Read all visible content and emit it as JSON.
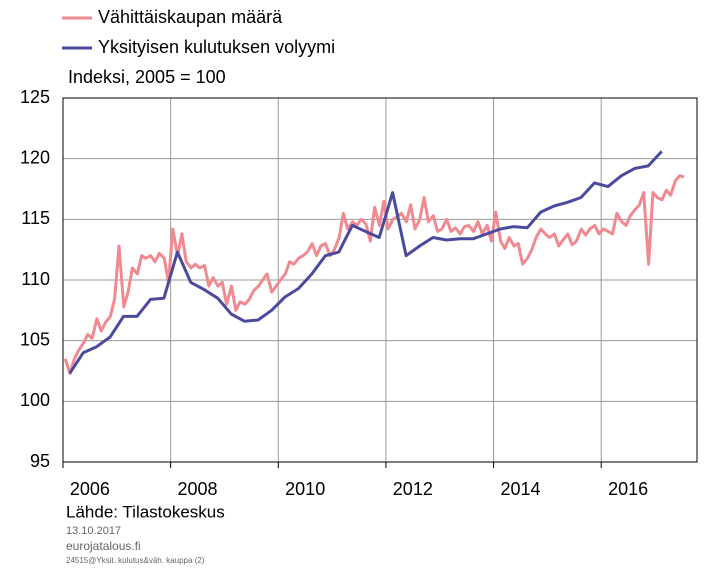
{
  "chart_data": {
    "type": "line",
    "subtitle": "Indeksi, 2005 = 100",
    "source": "Lähde: Tilastokeskus",
    "date": "13.10.2017",
    "site": "eurojatalous.fi",
    "file": "24515@Yksit. kulutus&väh. kauppa (2)",
    "xlim": [
      2006,
      2017.78
    ],
    "xticks": [
      2006,
      2008,
      2010,
      2012,
      2014,
      2016
    ],
    "ylim": [
      95,
      125
    ],
    "yticks": [
      95,
      100,
      105,
      110,
      115,
      120,
      125
    ],
    "grid": true,
    "series": [
      {
        "name": "Vähittäiskaupan määrä",
        "color": "#f08a90",
        "x": [
          2006.04,
          2006.13,
          2006.21,
          2006.29,
          2006.38,
          2006.46,
          2006.54,
          2006.63,
          2006.71,
          2006.79,
          2006.88,
          2006.96,
          2007.04,
          2007.13,
          2007.21,
          2007.29,
          2007.38,
          2007.46,
          2007.54,
          2007.63,
          2007.71,
          2007.79,
          2007.88,
          2007.96,
          2008.04,
          2008.13,
          2008.21,
          2008.29,
          2008.38,
          2008.46,
          2008.54,
          2008.63,
          2008.71,
          2008.79,
          2008.88,
          2008.96,
          2009.04,
          2009.13,
          2009.21,
          2009.29,
          2009.38,
          2009.46,
          2009.54,
          2009.63,
          2009.71,
          2009.79,
          2009.88,
          2009.96,
          2010.04,
          2010.13,
          2010.21,
          2010.29,
          2010.38,
          2010.46,
          2010.54,
          2010.63,
          2010.71,
          2010.79,
          2010.88,
          2010.96,
          2011.04,
          2011.13,
          2011.21,
          2011.29,
          2011.38,
          2011.46,
          2011.54,
          2011.63,
          2011.71,
          2011.79,
          2011.88,
          2011.96,
          2012.04,
          2012.13,
          2012.21,
          2012.29,
          2012.38,
          2012.46,
          2012.54,
          2012.63,
          2012.71,
          2012.79,
          2012.88,
          2012.96,
          2013.04,
          2013.13,
          2013.21,
          2013.29,
          2013.38,
          2013.46,
          2013.54,
          2013.63,
          2013.71,
          2013.79,
          2013.88,
          2013.96,
          2014.04,
          2014.13,
          2014.21,
          2014.29,
          2014.38,
          2014.46,
          2014.54,
          2014.63,
          2014.71,
          2014.79,
          2014.88,
          2014.96,
          2015.04,
          2015.13,
          2015.21,
          2015.29,
          2015.38,
          2015.46,
          2015.54,
          2015.63,
          2015.71,
          2015.79,
          2015.88,
          2015.96,
          2016.04,
          2016.13,
          2016.21,
          2016.29,
          2016.38,
          2016.46,
          2016.54,
          2016.63,
          2016.71,
          2016.79,
          2016.88,
          2016.96,
          2017.04,
          2017.13,
          2017.21,
          2017.29,
          2017.38,
          2017.46,
          2017.54
        ],
        "values": [
          103.5,
          102.3,
          103.5,
          104.2,
          104.8,
          105.5,
          105.2,
          106.8,
          105.8,
          106.5,
          107,
          108.5,
          112.8,
          107.8,
          109,
          111,
          110.5,
          112,
          111.8,
          112,
          111.5,
          112.2,
          111.8,
          109.8,
          114.2,
          112,
          113.8,
          111.5,
          111,
          111.3,
          111,
          111.2,
          109.5,
          110.2,
          109.5,
          109.8,
          108,
          109.5,
          107.5,
          108.2,
          108,
          108.4,
          109.1,
          109.5,
          110,
          110.5,
          109,
          109.5,
          110,
          110.5,
          111.5,
          111.3,
          111.8,
          112,
          112.3,
          113,
          112,
          112.8,
          113,
          112,
          112.5,
          113.5,
          115.5,
          114.2,
          114.8,
          114.5,
          115,
          114.6,
          113.2,
          116,
          114.5,
          116.5,
          114.2,
          115,
          115.2,
          115.5,
          114.8,
          116.2,
          114.2,
          115,
          116.8,
          114.8,
          115.3,
          114,
          114.2,
          115,
          114,
          114.3,
          113.8,
          114.4,
          114.5,
          114,
          114.8,
          113.8,
          114.5,
          113.2,
          115.6,
          113.2,
          112.6,
          113.5,
          112.8,
          113,
          111.3,
          111.8,
          112.5,
          113.5,
          114.2,
          113.8,
          113.5,
          113.8,
          112.8,
          113.3,
          113.8,
          112.9,
          113.2,
          114.2,
          113.7,
          114.2,
          114.5,
          113.8,
          114.2,
          114,
          113.8,
          115.5,
          114.8,
          114.5,
          115.3,
          115.8,
          116.2,
          117.2,
          111.3,
          117.2,
          116.8,
          116.6,
          117.4,
          117,
          118.2,
          118.6,
          118.5
        ]
      },
      {
        "name": "Yksityisen kulutuksen volyymi",
        "color": "#4b4b9e",
        "x": [
          2006.125,
          2006.375,
          2006.625,
          2006.875,
          2007.125,
          2007.375,
          2007.625,
          2007.875,
          2008.125,
          2008.375,
          2008.625,
          2008.875,
          2009.125,
          2009.375,
          2009.625,
          2009.875,
          2010.125,
          2010.375,
          2010.625,
          2010.875,
          2011.125,
          2011.375,
          2011.625,
          2011.875,
          2012.125,
          2012.375,
          2012.625,
          2012.875,
          2013.125,
          2013.375,
          2013.625,
          2013.875,
          2014.125,
          2014.375,
          2014.625,
          2014.875,
          2015.125,
          2015.375,
          2015.625,
          2015.875,
          2016.125,
          2016.375,
          2016.625,
          2016.875,
          2017.125
        ],
        "values": [
          102.3,
          104,
          104.5,
          105.3,
          107,
          107,
          108.4,
          108.5,
          112.3,
          109.8,
          109.2,
          108.5,
          107.2,
          106.6,
          106.7,
          107.5,
          108.6,
          109.3,
          110.5,
          112,
          112.3,
          114.5,
          114,
          113.5,
          117.2,
          112,
          112.8,
          113.5,
          113.3,
          113.4,
          113.4,
          113.8,
          114.2,
          114.4,
          114.3,
          115.6,
          116.1,
          116.4,
          116.8,
          118,
          117.7,
          118.6,
          119.2,
          119.4,
          120.6
        ]
      }
    ]
  }
}
